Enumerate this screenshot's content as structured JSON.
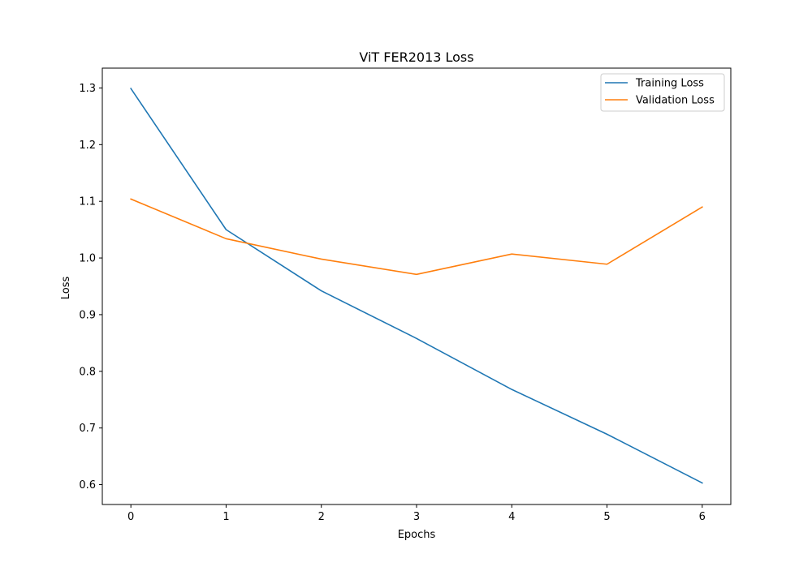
{
  "chart_data": {
    "type": "line",
    "title": "ViT FER2013 Loss",
    "xlabel": "Epochs",
    "ylabel": "Loss",
    "x": [
      0,
      1,
      2,
      3,
      4,
      5,
      6
    ],
    "xticks": [
      "0",
      "1",
      "2",
      "3",
      "4",
      "5",
      "6"
    ],
    "yticks": [
      "0.6",
      "0.7",
      "0.8",
      "0.9",
      "1.0",
      "1.1",
      "1.2",
      "1.3"
    ],
    "xlim": [
      -0.3,
      6.3
    ],
    "ylim": [
      0.565,
      1.335
    ],
    "grid": false,
    "legend_position": "top-right",
    "series": [
      {
        "name": "Training Loss",
        "color": "#1f77b4",
        "values": [
          1.299,
          1.05,
          0.942,
          0.858,
          0.768,
          0.689,
          0.603
        ]
      },
      {
        "name": "Validation Loss",
        "color": "#ff7f0e",
        "values": [
          1.104,
          1.034,
          0.998,
          0.971,
          1.007,
          0.989,
          1.09
        ]
      }
    ]
  }
}
